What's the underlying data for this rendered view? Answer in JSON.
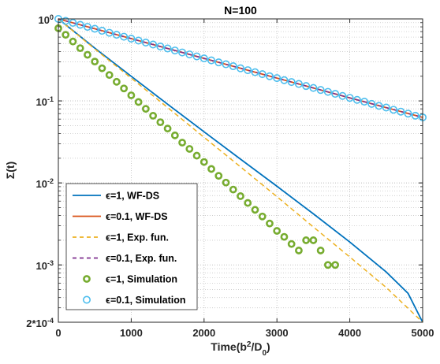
{
  "chart_data": {
    "type": "line",
    "title": "N=100",
    "xlabel": "Time(b²/D₀)",
    "ylabel": "Σ(t)",
    "xlim": [
      0,
      5000
    ],
    "ylim": [
      0.0002,
      1
    ],
    "y_scale": "log",
    "grid": "on",
    "legend_position": "bottom-left",
    "x_ticks": [
      {
        "value": 0,
        "label": "0"
      },
      {
        "value": 1000,
        "label": "1000"
      },
      {
        "value": 2000,
        "label": "2000"
      },
      {
        "value": 3000,
        "label": "3000"
      },
      {
        "value": 4000,
        "label": "4000"
      },
      {
        "value": 5000,
        "label": "5000"
      }
    ],
    "y_ticks": [
      {
        "value": 1,
        "base": "10",
        "exp": "0"
      },
      {
        "value": 0.1,
        "base": "10",
        "exp": "-1"
      },
      {
        "value": 0.01,
        "base": "10",
        "exp": "-2"
      },
      {
        "value": 0.001,
        "base": "10",
        "exp": "-3"
      },
      {
        "value": 0.0002,
        "base": "2*10",
        "exp": "-4"
      }
    ],
    "series": [
      {
        "name": "ϵ=1, WF-DS",
        "style": "solid",
        "color": "#0072BD",
        "x": [
          0,
          500,
          1000,
          1500,
          2000,
          2500,
          3000,
          3500,
          4000,
          4500,
          4800,
          5000
        ],
        "y": [
          1.0,
          0.44,
          0.2,
          0.091,
          0.042,
          0.0195,
          0.0091,
          0.0042,
          0.0019,
          0.00082,
          0.00045,
          0.0002
        ]
      },
      {
        "name": "ϵ=0.1, WF-DS",
        "style": "solid",
        "color": "#D95319",
        "x": [
          0,
          1000,
          2000,
          3000,
          4000,
          5000
        ],
        "y": [
          1.0,
          0.575,
          0.33,
          0.19,
          0.109,
          0.063
        ]
      },
      {
        "name": "ϵ=1, Exp. fun.",
        "style": "dashed",
        "color": "#EDB120",
        "x": [
          0,
          500,
          1000,
          1500,
          2000,
          2500,
          3000,
          3500,
          4000,
          4500,
          5000
        ],
        "y": [
          1.0,
          0.43,
          0.19,
          0.083,
          0.036,
          0.0157,
          0.0068,
          0.0029,
          0.00125,
          0.00053,
          0.0002
        ]
      },
      {
        "name": "ϵ=0.1, Exp. fun.",
        "style": "dashed",
        "color": "#7E2F8E",
        "x": [
          0,
          1000,
          2000,
          3000,
          4000,
          5000
        ],
        "y": [
          1.0,
          0.575,
          0.33,
          0.19,
          0.109,
          0.063
        ]
      },
      {
        "name": "ϵ=1, Simulation",
        "style": "marker",
        "color": "#77AC30",
        "x": [
          0,
          100,
          200,
          300,
          400,
          500,
          600,
          700,
          800,
          900,
          1000,
          1100,
          1200,
          1300,
          1400,
          1500,
          1600,
          1700,
          1800,
          1900,
          2000,
          2100,
          2200,
          2300,
          2400,
          2500,
          2600,
          2700,
          2800,
          2900,
          3000,
          3100,
          3200,
          3300,
          3400,
          3500,
          3600,
          3700,
          3800
        ],
        "y": [
          0.77,
          0.64,
          0.53,
          0.44,
          0.365,
          0.302,
          0.25,
          0.207,
          0.171,
          0.142,
          0.117,
          0.097,
          0.08,
          0.066,
          0.055,
          0.046,
          0.038,
          0.031,
          0.026,
          0.0215,
          0.018,
          0.0148,
          0.0122,
          0.0101,
          0.0083,
          0.0069,
          0.0057,
          0.0047,
          0.0039,
          0.0032,
          0.0026,
          0.0022,
          0.0018,
          0.0015,
          0.002,
          0.002,
          0.0015,
          0.001,
          0.001
        ]
      },
      {
        "name": "ϵ=0.1, Simulation",
        "style": "marker",
        "color": "#4DBEEE",
        "x": [
          0,
          100,
          200,
          300,
          400,
          500,
          600,
          700,
          800,
          900,
          1000,
          1100,
          1200,
          1300,
          1400,
          1500,
          1600,
          1700,
          1800,
          1900,
          2000,
          2100,
          2200,
          2300,
          2400,
          2500,
          2600,
          2700,
          2800,
          2900,
          3000,
          3100,
          3200,
          3300,
          3400,
          3500,
          3600,
          3700,
          3800,
          3900,
          4000,
          4100,
          4200,
          4300,
          4400,
          4500,
          4600,
          4700,
          4800,
          4900,
          5000
        ],
        "y": [
          1.0,
          0.945,
          0.895,
          0.847,
          0.8,
          0.758,
          0.717,
          0.678,
          0.641,
          0.607,
          0.575,
          0.544,
          0.515,
          0.487,
          0.461,
          0.436,
          0.412,
          0.39,
          0.369,
          0.349,
          0.33,
          0.312,
          0.295,
          0.28,
          0.265,
          0.25,
          0.237,
          0.224,
          0.212,
          0.2,
          0.19,
          0.179,
          0.17,
          0.161,
          0.152,
          0.144,
          0.136,
          0.129,
          0.122,
          0.115,
          0.109,
          0.103,
          0.098,
          0.092,
          0.087,
          0.083,
          0.078,
          0.074,
          0.07,
          0.066,
          0.063
        ]
      }
    ]
  }
}
